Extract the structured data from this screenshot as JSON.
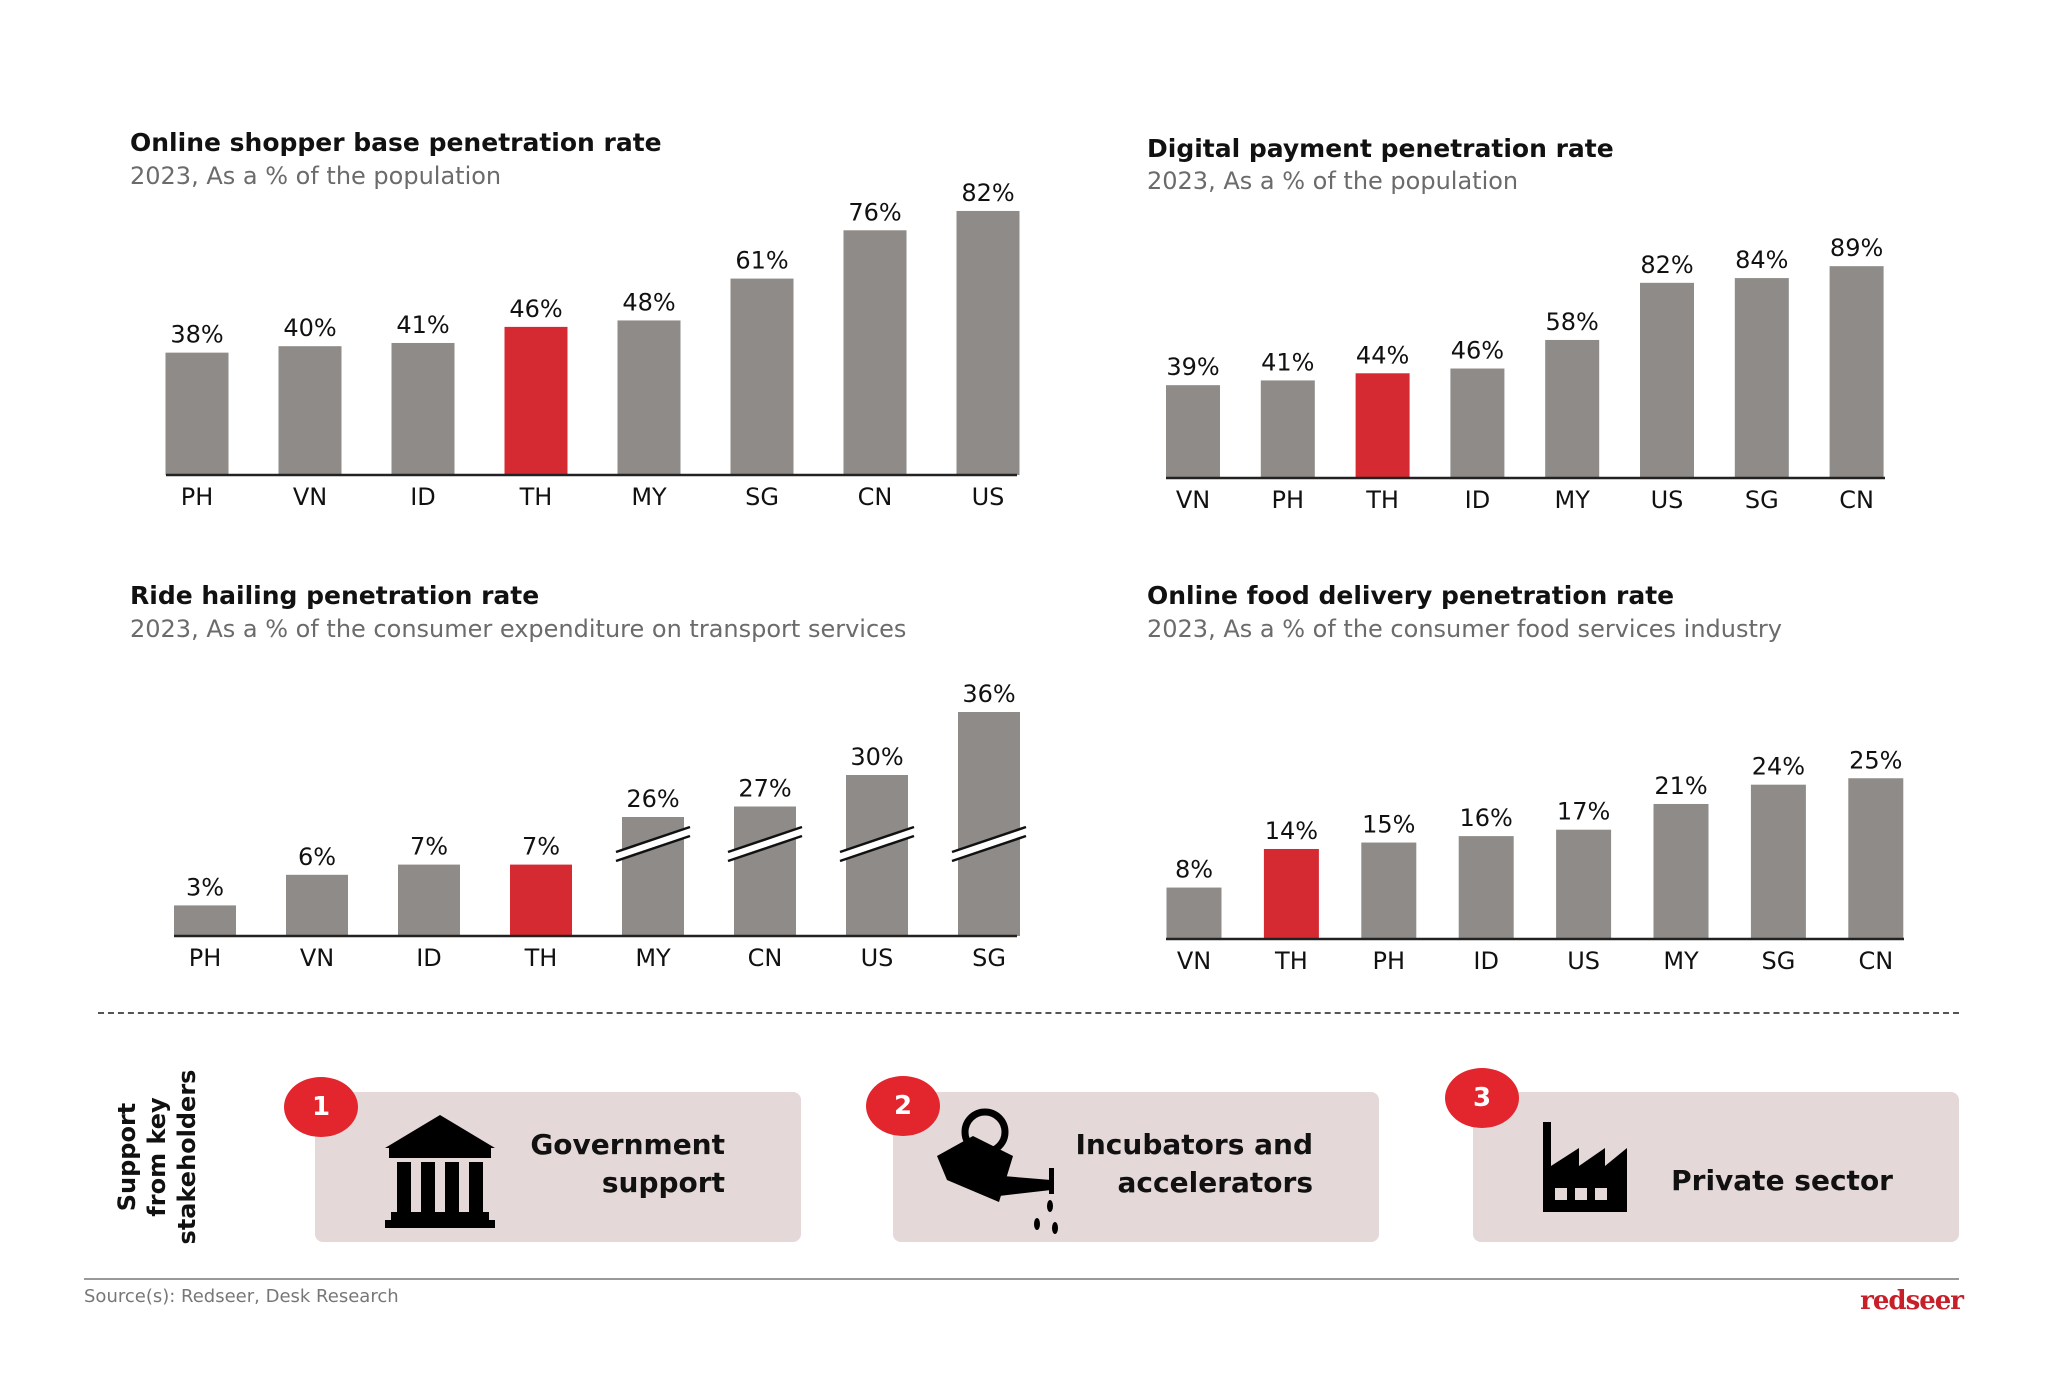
{
  "colors": {
    "bar": "#8e8b88",
    "highlight": "#d62a32",
    "badge": "#e3262e",
    "box": "#e4d8d8",
    "logo": "#c8202a"
  },
  "chart_data": [
    {
      "type": "bar",
      "title": "Online shopper base penetration rate",
      "subtitle": "2023, As a % of the population",
      "categories": [
        "PH",
        "VN",
        "ID",
        "TH",
        "MY",
        "SG",
        "CN",
        "US"
      ],
      "values": [
        38,
        40,
        41,
        46,
        48,
        61,
        76,
        82
      ],
      "labels": [
        "38%",
        "40%",
        "41%",
        "46%",
        "48%",
        "61%",
        "76%",
        "82%"
      ],
      "highlight": "TH",
      "grid": false
    },
    {
      "type": "bar",
      "title": "Digital payment penetration rate",
      "subtitle": "2023, As a % of the population",
      "categories": [
        "VN",
        "PH",
        "TH",
        "ID",
        "MY",
        "US",
        "SG",
        "CN"
      ],
      "values": [
        39,
        41,
        44,
        46,
        58,
        82,
        84,
        89
      ],
      "labels": [
        "39%",
        "41%",
        "44%",
        "46%",
        "58%",
        "82%",
        "84%",
        "89%"
      ],
      "highlight": "TH",
      "grid": false
    },
    {
      "type": "bar",
      "title": "Ride hailing penetration rate",
      "subtitle": "2023, As a % of the consumer expenditure on transport services",
      "categories": [
        "PH",
        "VN",
        "ID",
        "TH",
        "MY",
        "CN",
        "US",
        "SG"
      ],
      "values": [
        3,
        6,
        7,
        7,
        26,
        27,
        30,
        36
      ],
      "labels": [
        "3%",
        "6%",
        "7%",
        "7%",
        "26%",
        "27%",
        "30%",
        "36%"
      ],
      "highlight": "TH",
      "broken_axis_bars": [
        "MY",
        "CN",
        "US",
        "SG"
      ],
      "grid": false
    },
    {
      "type": "bar",
      "title": "Online food delivery penetration rate",
      "subtitle": "2023, As a % of the consumer food services industry",
      "categories": [
        "VN",
        "TH",
        "PH",
        "ID",
        "US",
        "MY",
        "SG",
        "CN"
      ],
      "values": [
        8,
        14,
        15,
        16,
        17,
        21,
        24,
        25
      ],
      "labels": [
        "8%",
        "14%",
        "15%",
        "16%",
        "17%",
        "21%",
        "24%",
        "25%"
      ],
      "highlight": "TH",
      "grid": false
    }
  ],
  "stakeholders": {
    "heading": "Support\nfrom key\nstakeholders",
    "items": [
      {
        "number": "1",
        "label": "Government\nsupport",
        "icon": "government-building-icon"
      },
      {
        "number": "2",
        "label": "Incubators and\naccelerators",
        "icon": "watering-can-icon"
      },
      {
        "number": "3",
        "label": "Private sector",
        "icon": "factory-icon"
      }
    ]
  },
  "footer": {
    "source": "Source(s): Redseer, Desk Research",
    "logo": "redseer"
  }
}
